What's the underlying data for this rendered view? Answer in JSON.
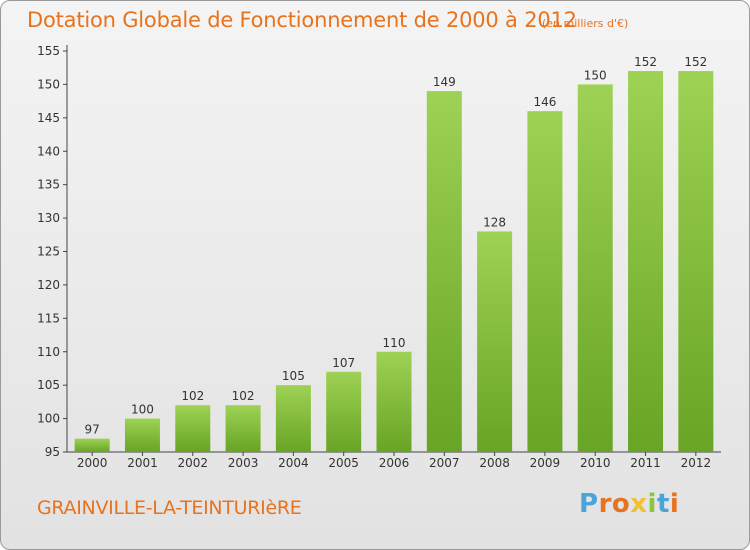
{
  "title": "Dotation Globale de Fonctionnement de 2000 à 2012",
  "unit": "(en milliers d'€)",
  "commune": "GRAINVILLE-LA-TEINTURIèRE",
  "logo": {
    "letters": [
      {
        "ch": "P",
        "color": "#4aa3d9"
      },
      {
        "ch": "r",
        "color": "#e8731f"
      },
      {
        "ch": "o",
        "color": "#e8731f"
      },
      {
        "ch": "x",
        "color": "#f2c12e"
      },
      {
        "ch": "i",
        "color": "#8cc63f"
      },
      {
        "ch": "t",
        "color": "#4aa3d9"
      },
      {
        "ch": "i",
        "color": "#e8731f"
      }
    ]
  },
  "colors": {
    "accent": "#e8731f",
    "bar_light": "#9ed254",
    "bar_dark": "#68a425"
  },
  "chart_data": {
    "type": "bar",
    "categories": [
      "2000",
      "2001",
      "2002",
      "2003",
      "2004",
      "2005",
      "2006",
      "2007",
      "2008",
      "2009",
      "2010",
      "2011",
      "2012"
    ],
    "values": [
      97,
      100,
      102,
      102,
      105,
      107,
      110,
      149,
      128,
      146,
      150,
      152,
      152
    ],
    "ylim": [
      95,
      155
    ],
    "yticks": [
      95,
      100,
      105,
      110,
      115,
      120,
      125,
      130,
      135,
      140,
      145,
      150,
      155
    ],
    "grid": false,
    "legend": "none"
  }
}
